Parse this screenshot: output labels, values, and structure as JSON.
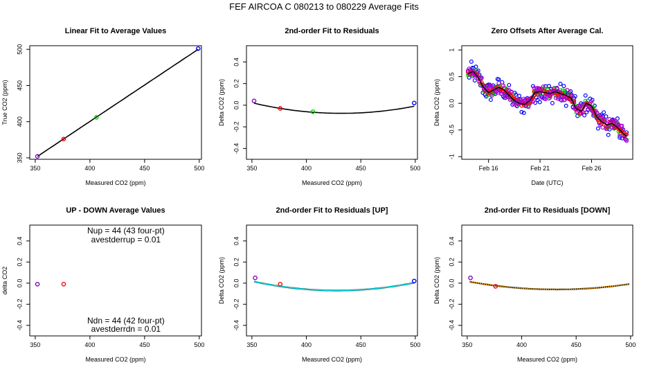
{
  "page_title": "FEF   AIRCOA C   080213 to 080229   Average Fits",
  "colors": {
    "axis": "#000000",
    "fit_line": "#000000",
    "cyan_fit": "#00e5ee",
    "orange_fit": "#ffa500",
    "blue": "#0000ff",
    "green": "#00cc00",
    "red": "#ff0000",
    "magenta": "#b000d8"
  },
  "chart_data": [
    {
      "id": "linear-fit",
      "type": "scatter",
      "title": "Linear Fit to Average Values",
      "xlabel": "Measured CO2 (ppm)",
      "ylabel": "True CO2 (ppm)",
      "xlim": [
        345,
        502
      ],
      "ylim": [
        348,
        505
      ],
      "xticks": [
        350,
        400,
        450,
        500
      ],
      "yticks": [
        350,
        400,
        450,
        500
      ],
      "points": [
        {
          "x": 352,
          "y": 352,
          "color": "#8000c0"
        },
        {
          "x": 376,
          "y": 376,
          "color": "#ff0000"
        },
        {
          "x": 406,
          "y": 406,
          "color": "#00cc00"
        },
        {
          "x": 499,
          "y": 501,
          "color": "#0000ff"
        }
      ],
      "fit": {
        "kind": "linear",
        "x_range": [
          352,
          499
        ],
        "slope": 1.0068,
        "intercept": -2.4
      }
    },
    {
      "id": "residual-fit",
      "type": "scatter",
      "title": "2nd-order Fit to Residuals",
      "xlabel": "Measured CO2 (ppm)",
      "ylabel": "Delta CO2 (ppm)",
      "xlim": [
        345,
        502
      ],
      "ylim": [
        -0.5,
        0.55
      ],
      "xticks": [
        350,
        400,
        450,
        500
      ],
      "yticks": [
        -0.4,
        -0.2,
        0.0,
        0.2,
        0.4
      ],
      "points": [
        {
          "x": 352,
          "y": 0.04,
          "color": "#8000c0"
        },
        {
          "x": 376,
          "y": -0.03,
          "color": "#ff0000"
        },
        {
          "x": 406,
          "y": -0.06,
          "color": "#00cc00"
        },
        {
          "x": 499,
          "y": 0.02,
          "color": "#0000ff"
        }
      ],
      "fit": {
        "kind": "quadratic",
        "x_range": [
          352,
          499
        ],
        "vertex_x": 432,
        "vertex_y": -0.075,
        "coef": 1.46e-05,
        "color": "#000000"
      }
    },
    {
      "id": "zero-offsets",
      "type": "scatter",
      "title": "Zero Offsets After Average Cal.",
      "xlabel": "Date (UTC)",
      "ylabel": "Delta CO2 (ppm)",
      "xlim": [
        13.4,
        30.0
      ],
      "ylim": [
        -1.05,
        1.08
      ],
      "xticks": [
        16,
        21,
        26
      ],
      "xtick_labels": [
        "Feb 16",
        "Feb 21",
        "Feb 26"
      ],
      "yticks": [
        -1.0,
        -0.5,
        0.0,
        0.5,
        1.0
      ],
      "trend": {
        "x": [
          14.0,
          14.5,
          15.0,
          15.5,
          16.0,
          16.5,
          17.0,
          17.5,
          18.0,
          18.5,
          19.0,
          19.5,
          20.0,
          20.5,
          21.0,
          21.5,
          22.0,
          22.5,
          23.0,
          23.5,
          24.0,
          24.5,
          25.0,
          25.5,
          26.0,
          26.5,
          27.0,
          27.5,
          28.0,
          28.5,
          29.0,
          29.4
        ],
        "y": [
          0.55,
          0.6,
          0.48,
          0.3,
          0.2,
          0.25,
          0.3,
          0.25,
          0.15,
          0.05,
          0.0,
          -0.02,
          0.05,
          0.2,
          0.22,
          0.2,
          0.18,
          0.22,
          0.18,
          0.15,
          0.1,
          -0.1,
          -0.15,
          0.0,
          -0.05,
          -0.25,
          -0.35,
          -0.4,
          -0.38,
          -0.45,
          -0.55,
          -0.62
        ]
      },
      "series": [
        {
          "name": "blue",
          "color": "#0000ff",
          "spread": 0.2
        },
        {
          "name": "green",
          "color": "#00cc00",
          "spread": 0.08
        },
        {
          "name": "red",
          "color": "#ff0000",
          "spread": 0.05
        },
        {
          "name": "magenta",
          "color": "#b000d8",
          "spread": 0.12
        }
      ]
    },
    {
      "id": "up-down",
      "type": "scatter",
      "title": "UP - DOWN Average Values",
      "xlabel": "Measured CO2 (ppm)",
      "ylabel": "delta CO2",
      "xlim": [
        345,
        502
      ],
      "ylim": [
        -0.5,
        0.55
      ],
      "xticks": [
        350,
        400,
        450,
        500
      ],
      "yticks": [
        -0.4,
        -0.2,
        0.0,
        0.2,
        0.4
      ],
      "points": [
        {
          "x": 352,
          "y": -0.01,
          "color": "#8000c0"
        },
        {
          "x": 376,
          "y": -0.01,
          "color": "#ff0000"
        }
      ],
      "annotations": {
        "nup": "Nup = 44 (43 four-pt)",
        "avestderrup": "avestderrup =  0.01",
        "ndn": "Ndn = 44 (42 four-pt)",
        "avestderrdn": "avestderrdn =  0.01"
      }
    },
    {
      "id": "residual-up",
      "type": "scatter",
      "title": "2nd-order Fit to Residuals [UP]",
      "xlabel": "Measured CO2 (ppm)",
      "ylabel": "Delta CO2 (ppm)",
      "xlim": [
        345,
        502
      ],
      "ylim": [
        -0.5,
        0.55
      ],
      "xticks": [
        350,
        400,
        450,
        500
      ],
      "yticks": [
        -0.4,
        -0.2,
        0.0,
        0.2,
        0.4
      ],
      "points": [
        {
          "x": 353,
          "y": 0.05,
          "color": "#8000c0"
        },
        {
          "x": 376,
          "y": -0.01,
          "color": "#ff0000"
        },
        {
          "x": 499,
          "y": 0.02,
          "color": "#0000ff"
        }
      ],
      "fit": {
        "kind": "quadratic",
        "x_range": [
          352,
          499
        ],
        "vertex_x": 428,
        "vertex_y": -0.07,
        "coef": 1.46e-05,
        "color": "#00e5ee"
      }
    },
    {
      "id": "residual-down",
      "type": "scatter",
      "title": "2nd-order Fit to Residuals [DOWN]",
      "xlabel": "Measured CO2 (ppm)",
      "ylabel": "Delta CO2 (ppm)",
      "xlim": [
        345,
        502
      ],
      "ylim": [
        -0.5,
        0.55
      ],
      "xticks": [
        350,
        400,
        450,
        500
      ],
      "yticks": [
        -0.4,
        -0.2,
        0.0,
        0.2,
        0.4
      ],
      "points": [
        {
          "x": 353,
          "y": 0.05,
          "color": "#8000c0"
        },
        {
          "x": 376,
          "y": -0.03,
          "color": "#ff0000"
        }
      ],
      "fit": {
        "kind": "quadratic",
        "x_range": [
          352,
          499
        ],
        "vertex_x": 432,
        "vertex_y": -0.06,
        "coef": 1.15e-05,
        "color": "#ffa500"
      }
    }
  ]
}
